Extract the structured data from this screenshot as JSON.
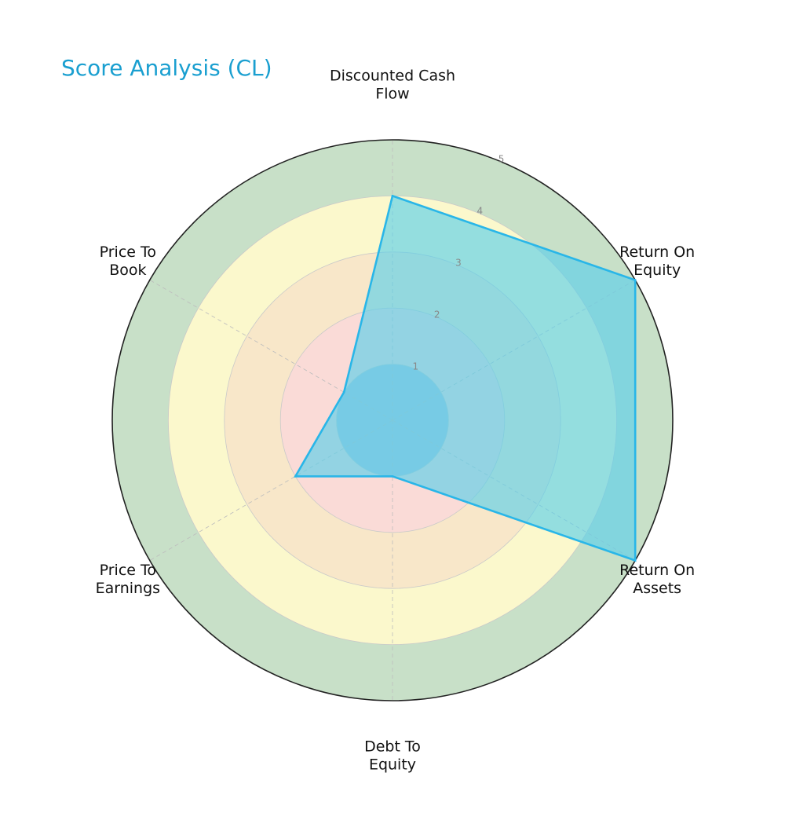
{
  "chart_data": {
    "type": "radar",
    "title": "Score Analysis (CL)",
    "axes": [
      [
        "Discounted Cash",
        "Flow"
      ],
      [
        "Return On",
        "Equity"
      ],
      [
        "Return On",
        "Assets"
      ],
      [
        "Debt To",
        "Equity"
      ],
      [
        "Price To",
        "Earnings"
      ],
      [
        "Price To",
        "Book"
      ]
    ],
    "values": [
      4,
      5,
      5,
      1,
      2,
      1
    ],
    "rlim": [
      0,
      5
    ],
    "rticks": [
      "1",
      "2",
      "3",
      "4",
      "5"
    ],
    "bands": [
      {
        "from": 0,
        "to": 1,
        "color": "#a9c4dd"
      },
      {
        "from": 1,
        "to": 2,
        "color": "#fadbd7"
      },
      {
        "from": 2,
        "to": 3,
        "color": "#f8e7c9"
      },
      {
        "from": 3,
        "to": 4,
        "color": "#fbf8cc"
      },
      {
        "from": 4,
        "to": 5,
        "color": "#c8e0c8"
      }
    ],
    "series_color": "#29b6e8",
    "series_fill": "#5cd0ea",
    "grid": true
  }
}
